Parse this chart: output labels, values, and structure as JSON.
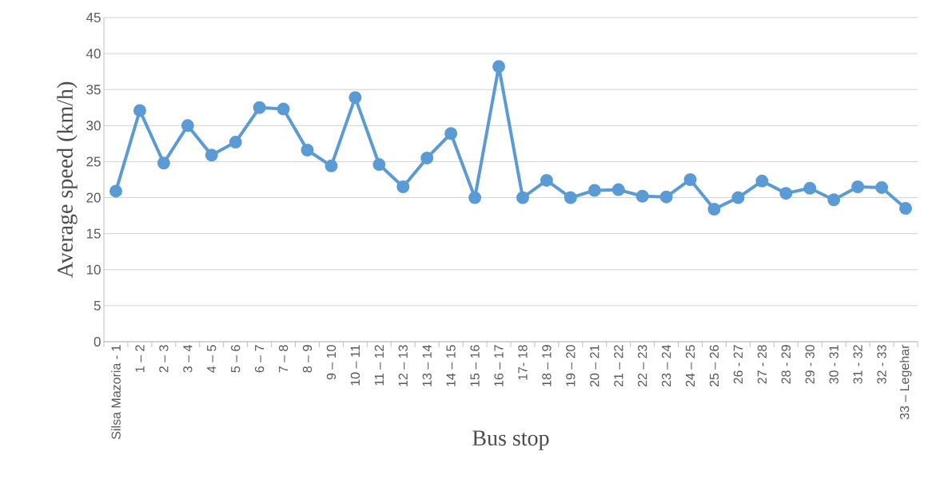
{
  "chart_data": {
    "type": "line",
    "xlabel": "Bus stop",
    "ylabel": "Average speed (km/h)",
    "categories": [
      "Silsa Mazoria - 1",
      "1 – 2",
      "2 – 3",
      "3 – 4",
      "4 – 5",
      "5 – 6",
      "6 – 7",
      "7 – 8",
      "8 – 9",
      "9 – 10",
      "10 – 11",
      "11 – 12",
      "12 – 13",
      "13 – 14",
      "14 – 15",
      "15 – 16",
      "16 – 17",
      "17- 18",
      "18 – 19",
      "19 – 20",
      "20 – 21",
      "21 – 22",
      "22 – 23",
      "23 – 24",
      "24 – 25",
      "25 – 26",
      "26 - 27",
      "27 - 28",
      "28 - 29",
      "29 - 30",
      "30 - 31",
      "31 - 32",
      "32 - 33",
      "33 – Legehar"
    ],
    "series": [
      {
        "color": "#5b9bd5",
        "values": [
          20.9,
          32.1,
          24.8,
          30.0,
          25.9,
          27.7,
          32.5,
          32.3,
          26.6,
          24.4,
          33.9,
          24.6,
          21.5,
          25.5,
          28.9,
          20.0,
          38.2,
          20.0,
          22.4,
          20.0,
          21.0,
          21.1,
          20.2,
          20.1,
          22.5,
          18.4,
          20.0,
          22.3,
          20.6,
          21.3,
          19.7,
          21.5,
          21.4,
          18.5
        ]
      }
    ],
    "ylim": [
      0,
      45
    ],
    "yticks": [
      0,
      5,
      10,
      15,
      20,
      25,
      30,
      35,
      40,
      45
    ],
    "grid": "y",
    "marker": "circle",
    "line_style": "solid"
  }
}
